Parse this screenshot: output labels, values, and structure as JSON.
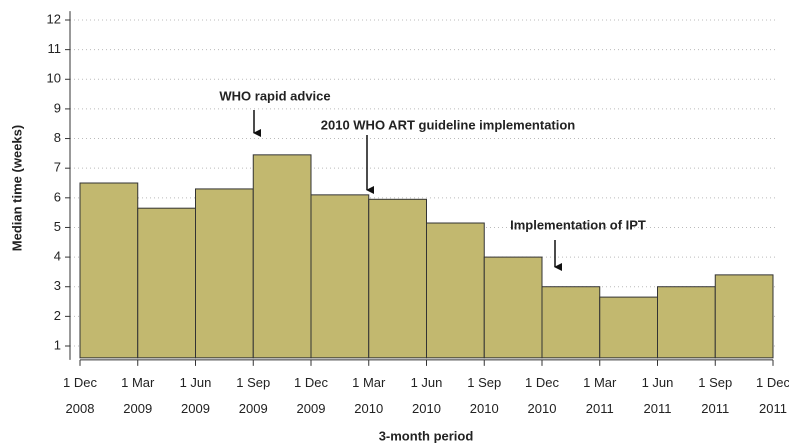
{
  "chart_data": {
    "type": "histogram",
    "x_label": "3-month period",
    "y_label": "Median time (weeks)",
    "bins": [
      "1 Dec 2008",
      "1 Mar 2009",
      "1 Jun 2009",
      "1 Sep 2009",
      "1 Dec 2009",
      "1 Mar 2010",
      "1 Jun 2010",
      "1 Sep 2010",
      "1 Dec 2010",
      "1 Mar 2011",
      "1 Jun 2011",
      "1 Sep 2011",
      "1 Dec 2011"
    ],
    "values": [
      6.5,
      5.65,
      6.3,
      7.45,
      6.1,
      5.95,
      5.15,
      4.0,
      3.0,
      2.65,
      3.0,
      3.4
    ],
    "color": "#c2b86f",
    "ylim": [
      0.6,
      12.3
    ],
    "yticks": [
      1,
      2,
      3,
      4,
      5,
      6,
      7,
      8,
      9,
      10,
      11,
      12
    ],
    "grid": true,
    "annotations": [
      "WHO rapid advice",
      "2010 WHO ART guideline implementation",
      "Implementation of IPT"
    ]
  }
}
